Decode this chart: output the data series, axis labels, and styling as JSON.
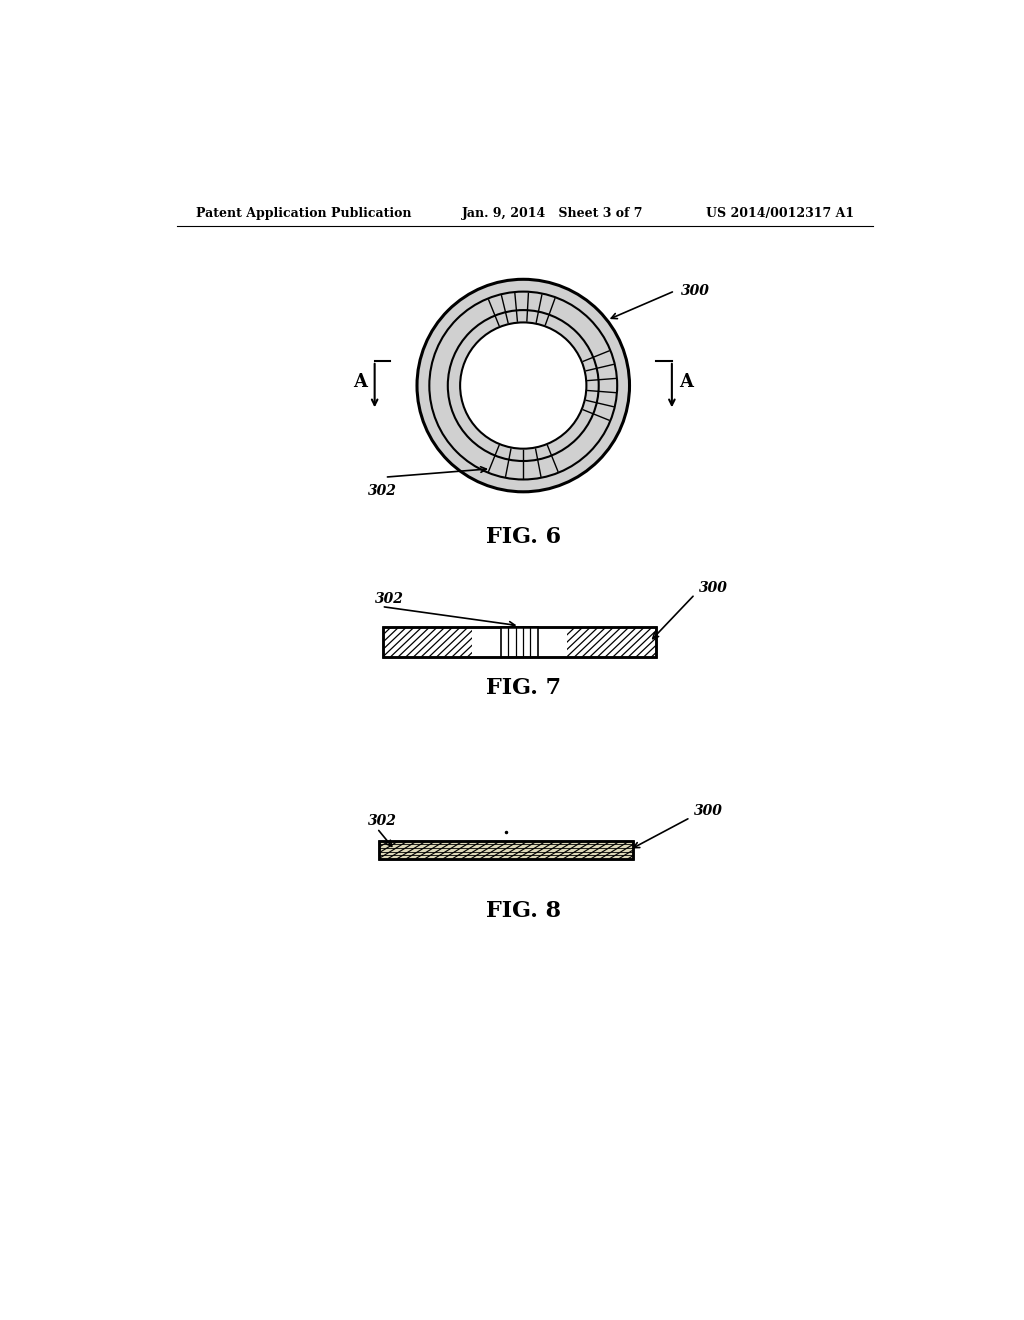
{
  "header_left": "Patent Application Publication",
  "header_mid": "Jan. 9, 2014   Sheet 3 of 7",
  "header_right": "US 2014/0012317 A1",
  "fig6_label": "FIG. 6",
  "fig7_label": "FIG. 7",
  "fig8_label": "FIG. 8",
  "label_300": "300",
  "label_302": "302",
  "label_A": "A",
  "bg_color": "#ffffff",
  "line_color": "#000000"
}
